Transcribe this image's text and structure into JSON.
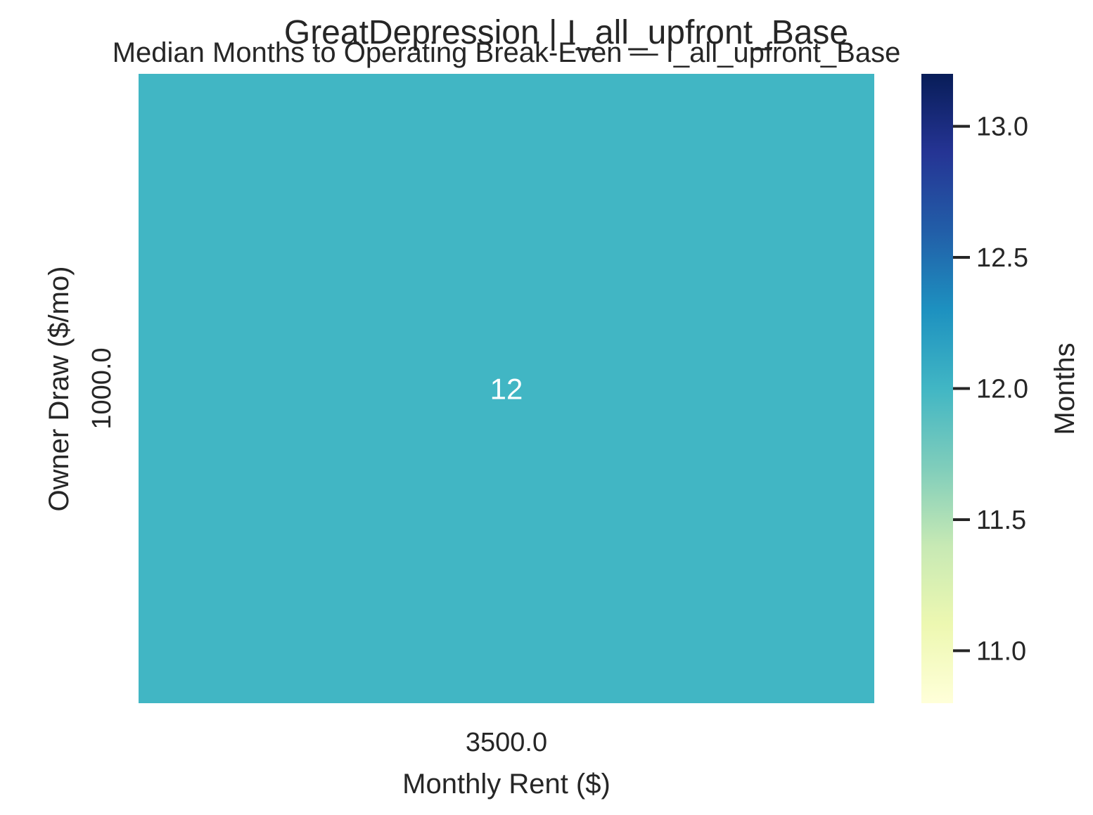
{
  "chart_data": {
    "type": "heatmap",
    "title": "GreatDepression | I_all_upfront_Base",
    "subtitle": "Median Months to Operating Break-Even — I_all_upfront_Base",
    "xlabel": "Monthly Rent ($)",
    "ylabel": "Owner Draw ($/mo)",
    "x_categories": [
      "3500.0"
    ],
    "y_categories": [
      "1000.0"
    ],
    "values": [
      [
        12
      ]
    ],
    "annotations": [
      [
        "12"
      ]
    ],
    "cell_color": "#41b6c4",
    "annotation_color": "#ffffff",
    "colorbar": {
      "label": "Months",
      "range": [
        10.8,
        13.2
      ],
      "ticks": [
        11.0,
        11.5,
        12.0,
        12.5,
        13.0
      ],
      "tick_labels": [
        "11.0",
        "11.5",
        "12.0",
        "12.5",
        "13.0"
      ],
      "colormap": "YlGnBu",
      "colors": [
        "#ffffd9",
        "#edf8b1",
        "#c7e9b4",
        "#7fcdbb",
        "#41b6c4",
        "#1d91c0",
        "#225ea8",
        "#253494",
        "#081d58"
      ]
    },
    "grid": false
  }
}
